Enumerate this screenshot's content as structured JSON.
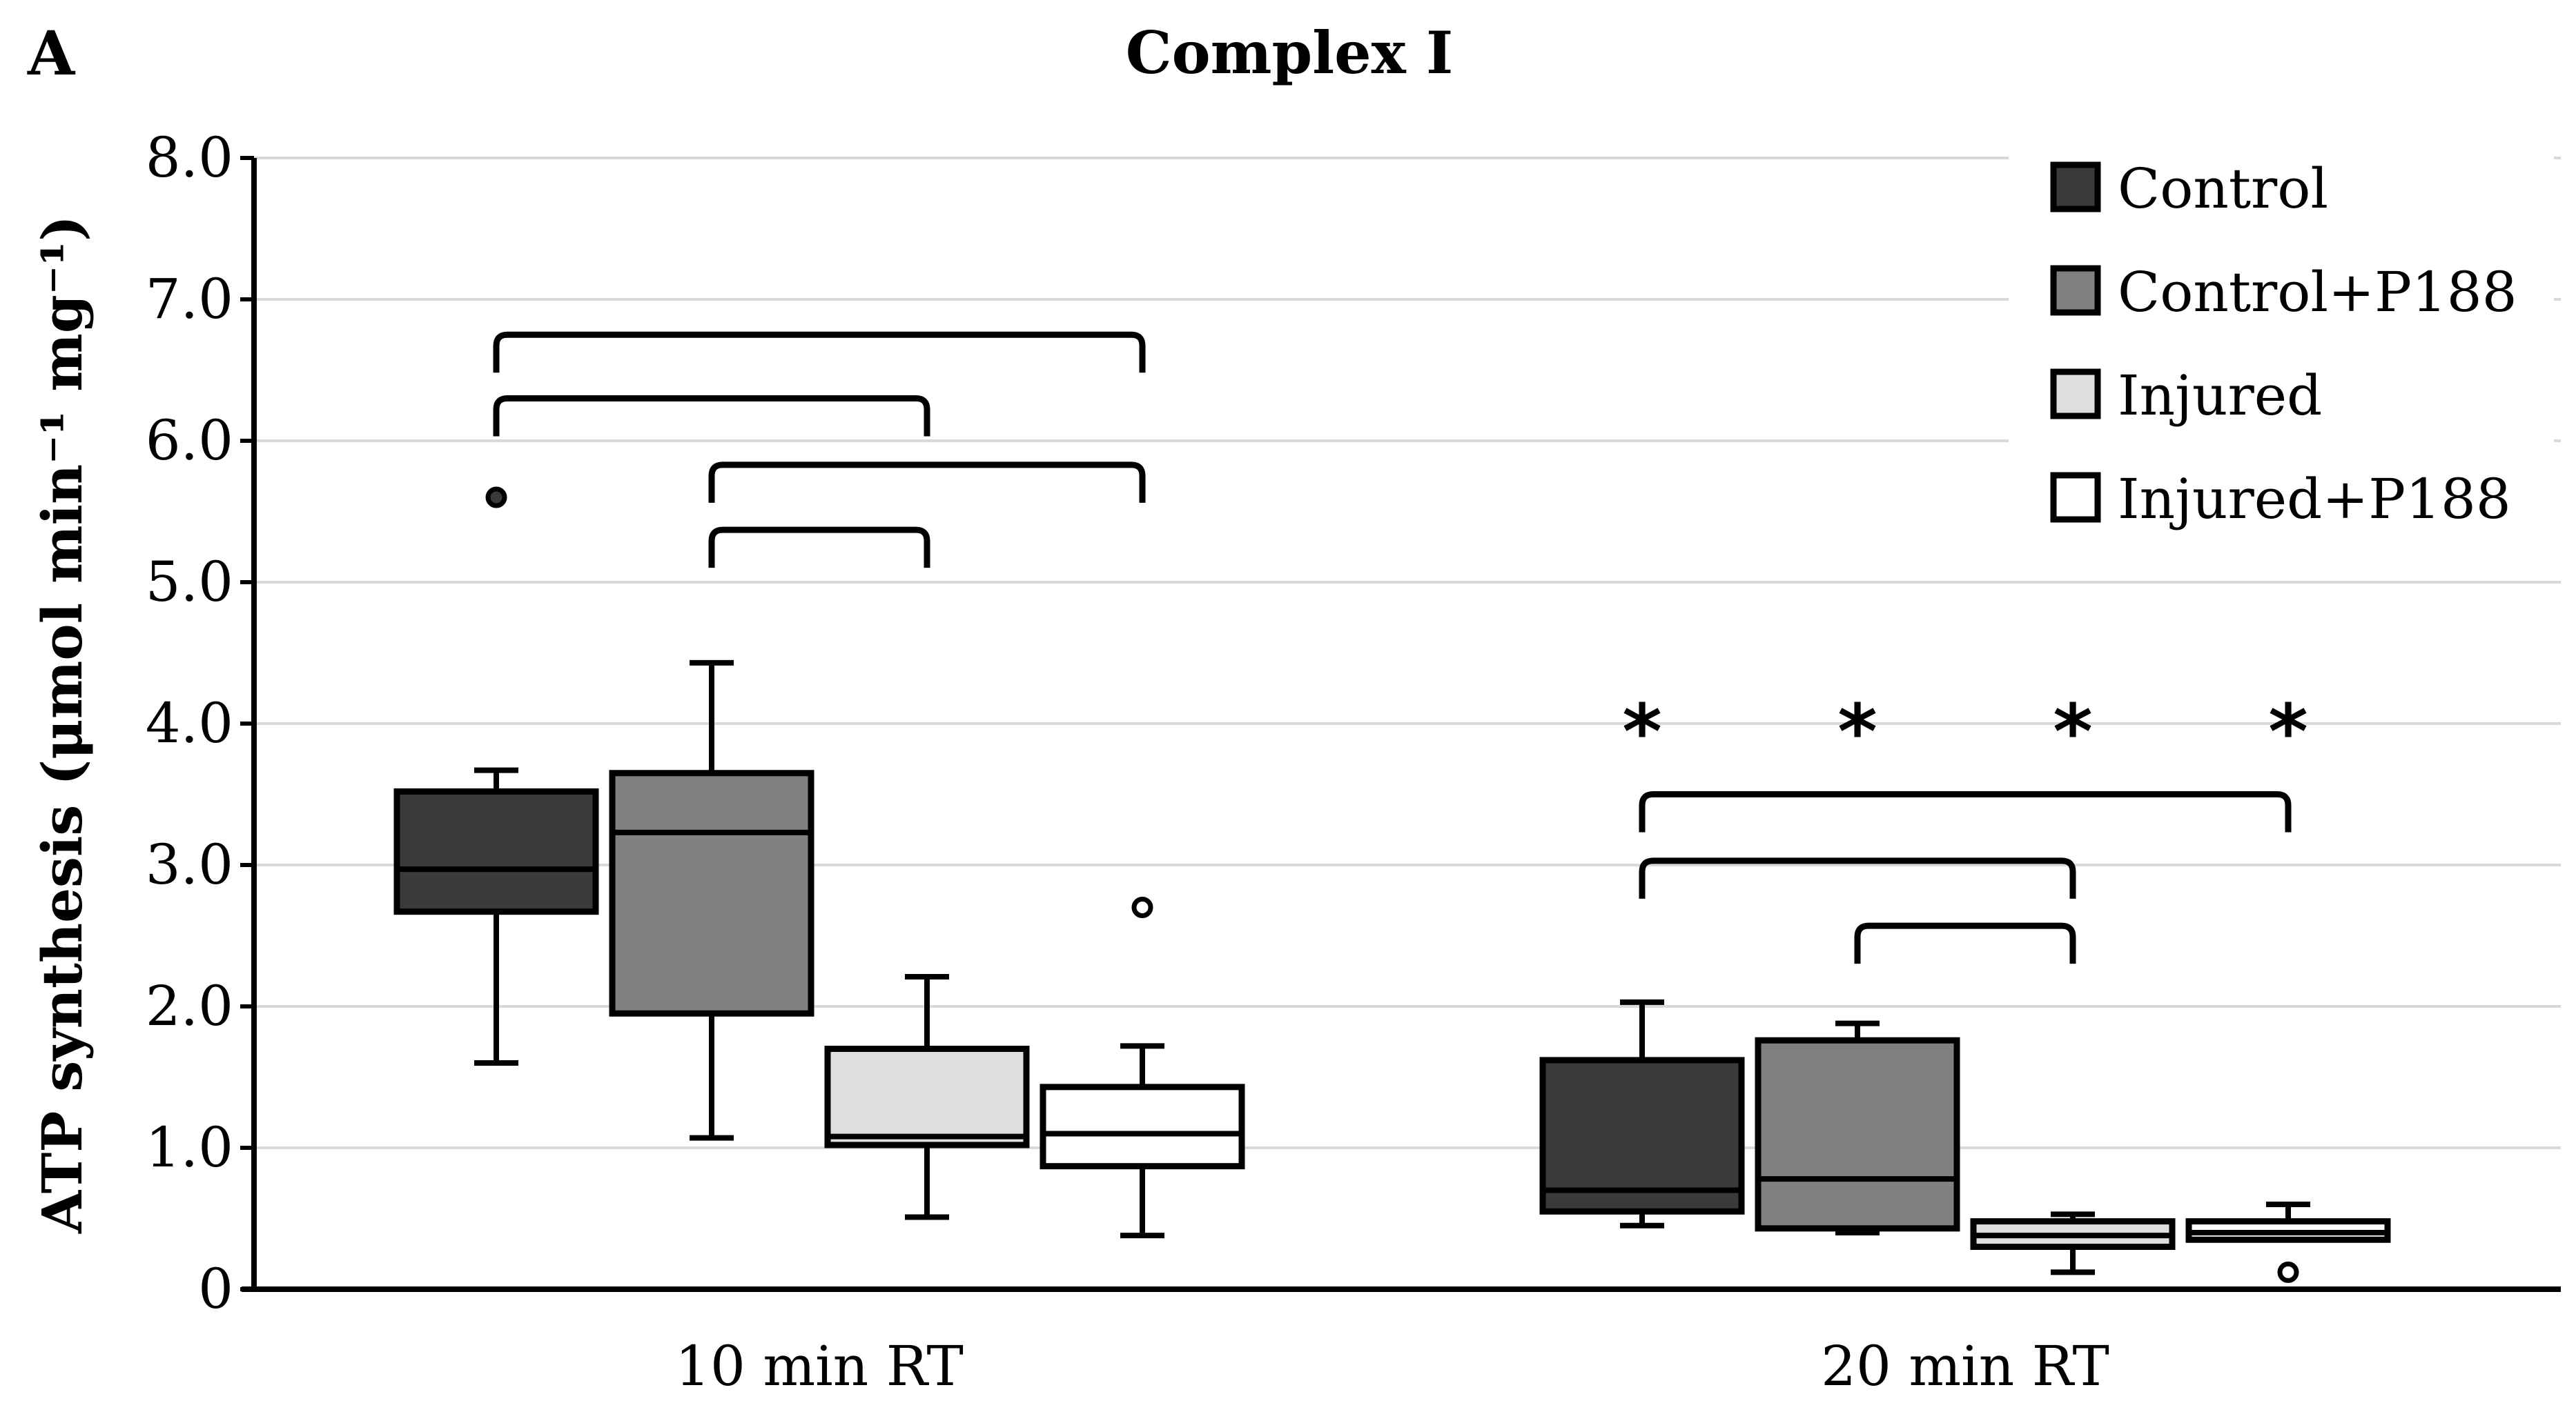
{
  "panel_label": "A",
  "chart_data": {
    "type": "box",
    "title": "Complex I",
    "xlabel": "",
    "ylabel": "ATP synthesis (μmol min⁻¹ mg⁻¹)",
    "ylim": [
      0,
      8
    ],
    "yticks": [
      0,
      1,
      2,
      3,
      4,
      5,
      6,
      7,
      8
    ],
    "ytick_labels": [
      "0",
      "1.0",
      "2.0",
      "3.0",
      "4.0",
      "5.0",
      "6.0",
      "7.0",
      "8.0"
    ],
    "grid": true,
    "legend_position": "top-right",
    "categories": [
      "10 min RT",
      "20 min RT"
    ],
    "series": [
      {
        "name": "Control",
        "color": "#3a3a3a",
        "boxes": [
          {
            "min": 1.6,
            "q1": 2.67,
            "median": 2.97,
            "q3": 3.52,
            "max": 3.67,
            "outliers": [
              5.6
            ]
          },
          {
            "min": 0.45,
            "q1": 0.55,
            "median": 0.7,
            "q3": 1.62,
            "max": 2.03,
            "outliers": []
          }
        ]
      },
      {
        "name": "Control+P188",
        "color": "#808080",
        "boxes": [
          {
            "min": 1.07,
            "q1": 1.95,
            "median": 3.23,
            "q3": 3.65,
            "max": 4.43,
            "outliers": []
          },
          {
            "min": 0.4,
            "q1": 0.43,
            "median": 0.78,
            "q3": 1.76,
            "max": 1.88,
            "outliers": []
          }
        ]
      },
      {
        "name": "Injured",
        "color": "#dedede",
        "boxes": [
          {
            "min": 0.51,
            "q1": 1.02,
            "median": 1.08,
            "q3": 1.7,
            "max": 2.21,
            "outliers": []
          },
          {
            "min": 0.12,
            "q1": 0.3,
            "median": 0.38,
            "q3": 0.48,
            "max": 0.53,
            "outliers": []
          }
        ]
      },
      {
        "name": "Injured+P188",
        "color": "#ffffff",
        "boxes": [
          {
            "min": 0.38,
            "q1": 0.87,
            "median": 1.1,
            "q3": 1.43,
            "max": 1.72,
            "outliers": [
              2.7
            ]
          },
          {
            "min": 0.35,
            "q1": 0.35,
            "median": 0.4,
            "q3": 0.48,
            "max": 0.6,
            "outliers": [
              0.12
            ]
          }
        ]
      }
    ],
    "brackets": [
      {
        "category": 0,
        "from": 0,
        "to": 3,
        "y": 6.75
      },
      {
        "category": 0,
        "from": 0,
        "to": 2,
        "y": 6.3
      },
      {
        "category": 0,
        "from": 1,
        "to": 3,
        "y": 5.83
      },
      {
        "category": 0,
        "from": 1,
        "to": 2,
        "y": 5.37
      },
      {
        "category": 1,
        "from": 0,
        "to": 3,
        "y": 3.5
      },
      {
        "category": 1,
        "from": 0,
        "to": 2,
        "y": 3.03
      },
      {
        "category": 1,
        "from": 1,
        "to": 2,
        "y": 2.57
      }
    ],
    "significance": {
      "symbol": "*",
      "category": 1,
      "y": 4.0,
      "series": [
        0,
        1,
        2,
        3
      ]
    }
  }
}
